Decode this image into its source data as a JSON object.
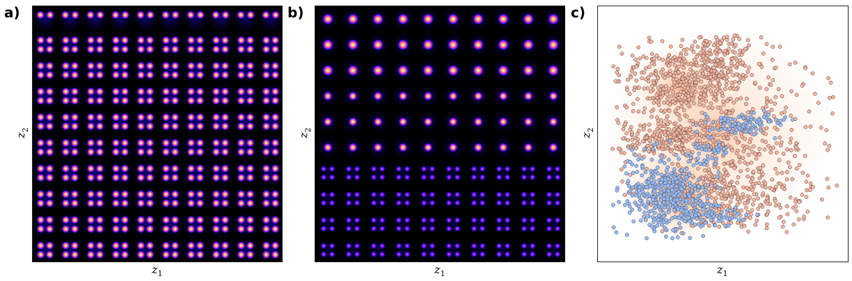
{
  "panels": [
    {
      "label": "a)",
      "xlabel": "z",
      "xsub": "1",
      "ylabel": "z",
      "ysub": "2"
    },
    {
      "label": "b)",
      "xlabel": "z",
      "xsub": "1",
      "ylabel": "z",
      "ysub": "2"
    },
    {
      "label": "c)",
      "xlabel": "z",
      "xsub": "1",
      "ylabel": "z",
      "ysub": "2"
    }
  ],
  "chart_data": [
    {
      "type": "heatmap",
      "title": "",
      "xlabel": "z1",
      "ylabel": "z2",
      "grid": [
        10,
        10
      ],
      "cell_pattern": "2x2 blob cluster in rows 2-10, single blobs in top row",
      "colormap": [
        "#000000",
        "#2a00ff",
        "#ff30b0",
        "#ffd060",
        "#ffffff"
      ],
      "ticks": false
    },
    {
      "type": "heatmap",
      "title": "",
      "xlabel": "z1",
      "ylabel": "z2",
      "grid": [
        10,
        10
      ],
      "cell_pattern": "single bright blob in upper rows, dim 2x2 blob cluster in lower rows",
      "colormap": [
        "#000000",
        "#2a00ff",
        "#ff30b0",
        "#ffd060",
        "#ffffff"
      ],
      "ticks": false
    },
    {
      "type": "scatter",
      "title": "",
      "xlabel": "z1",
      "ylabel": "z2",
      "ticks": false,
      "series": [
        {
          "color": "#f3b7a3",
          "edge": "#553b33",
          "count": 1500
        },
        {
          "color": "#9bbcf0",
          "edge": "#3a4a6a",
          "count": 600
        }
      ],
      "background": "density (orange)"
    }
  ]
}
